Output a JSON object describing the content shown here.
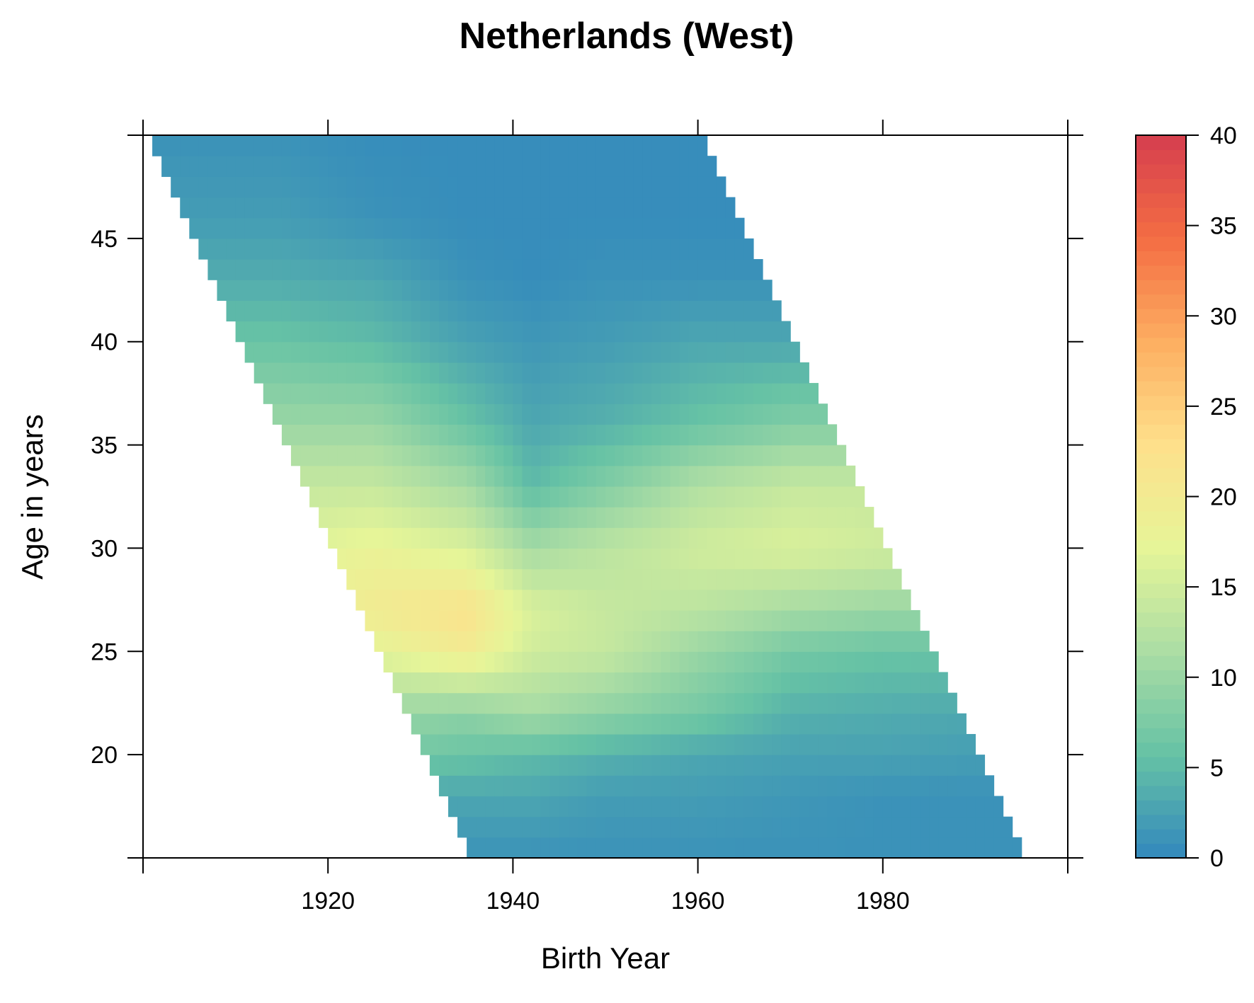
{
  "chart_data": {
    "type": "heatmap",
    "title": "Netherlands (West)",
    "xlabel": "Birth Year",
    "ylabel": "Age in years",
    "xlim": [
      1900,
      2000
    ],
    "ylim": [
      15,
      50
    ],
    "x_ticks": [
      1920,
      1940,
      1960,
      1980
    ],
    "y_ticks": [
      20,
      25,
      30,
      35,
      40,
      45
    ],
    "x_tick_labels": [
      "1920",
      "1940",
      "1960",
      "1980"
    ],
    "y_tick_labels": [
      "20",
      "25",
      "30",
      "35",
      "40",
      "45"
    ],
    "colorbar": {
      "range": [
        0,
        40
      ],
      "ticks": [
        0,
        5,
        10,
        15,
        20,
        25,
        30,
        35,
        40
      ],
      "tick_labels": [
        "0",
        "5",
        "10",
        "15",
        "20",
        "25",
        "30",
        "35",
        "40"
      ],
      "palette": [
        "#3288bd",
        "#66c2a5",
        "#abdda4",
        "#e6f598",
        "#fee08b",
        "#fdae61",
        "#f46d43",
        "#d53e4f"
      ]
    },
    "domain": {
      "description": "cells exist where birth_year + age lies within the survey window",
      "period_start": 1950,
      "period_end": 2009
    },
    "value_profiles": {
      "ages": [
        15,
        18,
        20,
        22,
        25,
        27,
        30,
        33,
        36,
        40,
        43,
        46,
        50
      ],
      "cohorts": [
        1900,
        1915,
        1925,
        1935,
        1942,
        1950,
        1960,
        1970,
        1980,
        1995
      ],
      "values": [
        [
          0.5,
          0.5,
          0.5,
          1,
          1,
          1,
          1,
          1,
          1,
          1
        ],
        [
          3,
          3,
          3,
          3,
          3,
          2,
          2,
          1.5,
          1,
          1
        ],
        [
          7,
          7,
          7,
          6,
          5,
          4,
          3,
          2.5,
          2.5,
          2
        ],
        [
          10,
          10,
          10,
          9,
          11,
          9,
          7,
          4,
          3.5,
          3
        ],
        [
          17,
          17,
          17,
          20,
          15,
          14,
          10,
          7,
          6,
          6
        ],
        [
          18,
          18,
          20,
          22,
          16,
          14,
          13,
          11,
          10,
          10
        ],
        [
          16,
          16,
          18,
          16,
          11,
          13,
          15,
          16,
          15,
          15
        ],
        [
          14,
          14,
          14,
          11,
          5,
          8,
          12,
          14,
          14,
          14
        ],
        [
          10,
          10,
          10,
          6,
          3,
          4,
          6,
          8,
          8,
          8
        ],
        [
          6,
          6,
          5,
          2.5,
          1.5,
          2,
          3,
          3,
          3,
          3
        ],
        [
          3.5,
          3.5,
          3,
          1,
          0.5,
          1,
          1,
          1,
          1,
          1
        ],
        [
          2,
          2,
          1,
          0.5,
          0.5,
          0.5,
          0.5,
          0.5,
          0.5,
          0.5
        ],
        [
          1,
          1,
          0.5,
          0.5,
          0.5,
          0.5,
          0.5,
          0.5,
          0.5,
          0.5
        ]
      ]
    }
  }
}
